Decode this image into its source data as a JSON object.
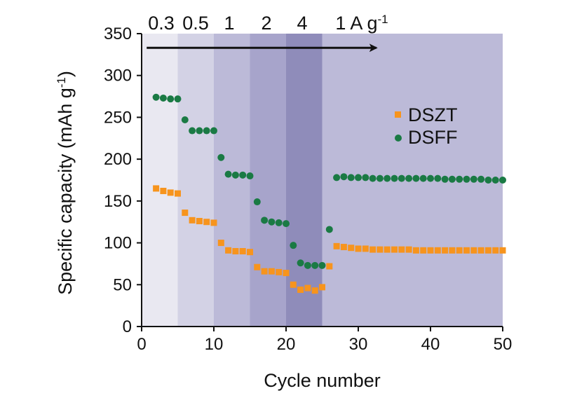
{
  "chart_data": {
    "type": "scatter",
    "title": "",
    "xlabel": "Cycle number",
    "ylabel": "Specific capacity (mAh g",
    "ylabel_sup": "-1",
    "ylabel_suffix": ")",
    "xlim": [
      0,
      50
    ],
    "ylim": [
      0,
      350
    ],
    "xticks": [
      0,
      10,
      20,
      30,
      40,
      50
    ],
    "yticks": [
      0,
      50,
      100,
      150,
      200,
      250,
      300,
      350
    ],
    "grid": false,
    "legend_position": "right",
    "regions": [
      {
        "label": "0.3",
        "x0": 0,
        "x1": 5,
        "color": "#e9e8f1"
      },
      {
        "label": "0.5",
        "x0": 5,
        "x1": 10,
        "color": "#d3d2e5"
      },
      {
        "label": "1",
        "x0": 10,
        "x1": 15,
        "color": "#bcbad8"
      },
      {
        "label": "2",
        "x0": 15,
        "x1": 20,
        "color": "#a7a4cb"
      },
      {
        "label": "4",
        "x0": 20,
        "x1": 25,
        "color": "#8f8cba"
      },
      {
        "label": "1 A g",
        "label_sup": "-1",
        "x0": 25,
        "x1": 50,
        "color": "#bcbad8"
      }
    ],
    "arrow": {
      "x_start": 0.7,
      "x_end": 32.5,
      "y": 333
    },
    "series": [
      {
        "name": "DSZT",
        "marker": "square",
        "color": "#f7941d",
        "x": [
          2,
          3,
          4,
          5,
          6,
          7,
          8,
          9,
          10,
          11,
          12,
          13,
          14,
          15,
          16,
          17,
          18,
          19,
          20,
          21,
          22,
          23,
          24,
          25,
          26,
          27,
          28,
          29,
          30,
          31,
          32,
          33,
          34,
          35,
          36,
          37,
          38,
          39,
          40,
          41,
          42,
          43,
          44,
          45,
          46,
          47,
          48,
          49,
          50
        ],
        "values": [
          165,
          162,
          160,
          159,
          136,
          127,
          126,
          125,
          124,
          100,
          91,
          90,
          90,
          89,
          71,
          66,
          66,
          65,
          64,
          50,
          44,
          46,
          43,
          47,
          72,
          96,
          95,
          94,
          93,
          93,
          92,
          92,
          92,
          92,
          92,
          92,
          91,
          91,
          91,
          91,
          91,
          91,
          91,
          91,
          91,
          91,
          91,
          91,
          91
        ]
      },
      {
        "name": "DSFF",
        "marker": "circle",
        "color": "#1a7a44",
        "x": [
          2,
          3,
          4,
          5,
          6,
          7,
          8,
          9,
          10,
          11,
          12,
          13,
          14,
          15,
          16,
          17,
          18,
          19,
          20,
          21,
          22,
          23,
          24,
          25,
          26,
          27,
          28,
          29,
          30,
          31,
          32,
          33,
          34,
          35,
          36,
          37,
          38,
          39,
          40,
          41,
          42,
          43,
          44,
          45,
          46,
          47,
          48,
          49,
          50
        ],
        "values": [
          274,
          273,
          272,
          272,
          247,
          234,
          234,
          234,
          234,
          202,
          182,
          181,
          181,
          180,
          149,
          127,
          125,
          124,
          123,
          97,
          76,
          73,
          73,
          73,
          116,
          178,
          179,
          178,
          178,
          178,
          177,
          177,
          177,
          177,
          177,
          177,
          177,
          177,
          177,
          177,
          176,
          176,
          176,
          176,
          176,
          176,
          175,
          175,
          175
        ]
      }
    ]
  }
}
